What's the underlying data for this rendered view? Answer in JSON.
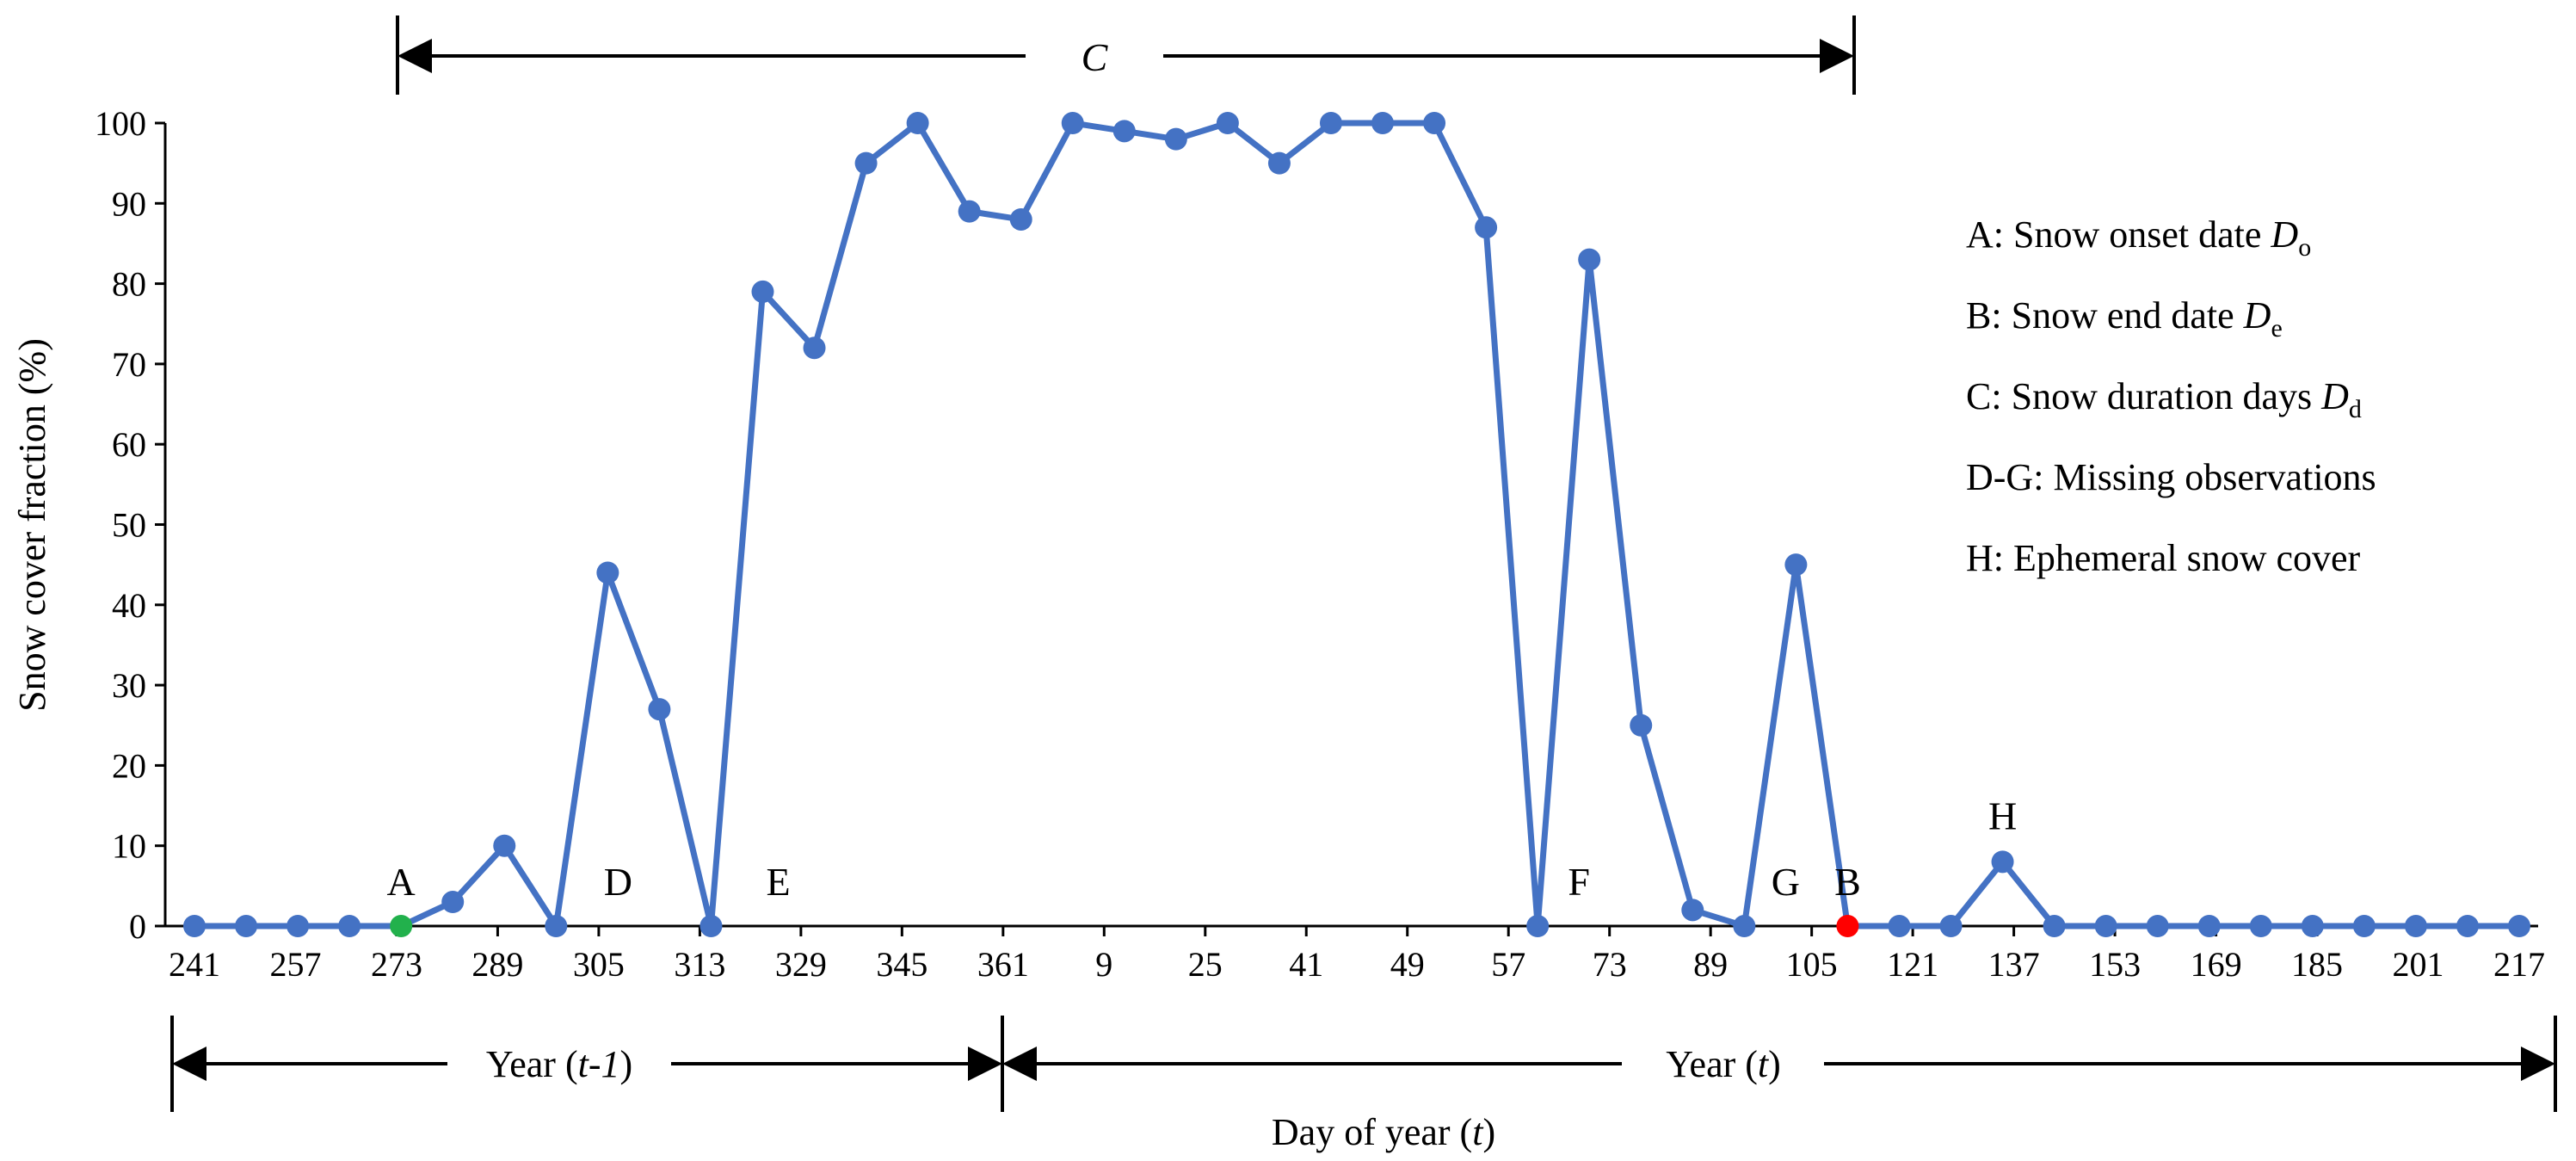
{
  "chart_data": {
    "type": "line",
    "ylabel": "Snow cover fraction (%)",
    "xlabel": {
      "text": "Day of year (",
      "var": "t",
      "close": ")"
    },
    "ylim": [
      0,
      100
    ],
    "yticks": [
      0,
      10,
      20,
      30,
      40,
      50,
      60,
      70,
      80,
      90,
      100
    ],
    "xtick_labels": [
      "241",
      "257",
      "273",
      "289",
      "305",
      "313",
      "329",
      "345",
      "361",
      "9",
      "25",
      "41",
      "49",
      "57",
      "73",
      "89",
      "105",
      "121",
      "137",
      "153",
      "169",
      "185",
      "201",
      "217"
    ],
    "series": [
      {
        "name": "Snow cover fraction",
        "color": "#4472C4",
        "values": [
          0,
          0,
          0,
          0,
          0,
          3,
          10,
          0,
          44,
          27,
          0,
          79,
          72,
          95,
          100,
          89,
          88,
          100,
          99,
          98,
          100,
          95,
          100,
          100,
          100,
          87,
          0,
          83,
          25,
          2,
          0,
          45,
          0,
          0,
          0,
          8,
          0,
          0,
          0,
          0,
          0,
          0,
          0,
          0,
          0,
          0
        ]
      }
    ],
    "highlight_points": [
      {
        "index": 4,
        "color": "#22B14C",
        "label": "A"
      },
      {
        "index": 32,
        "color": "#FF0000",
        "label": "B"
      }
    ],
    "point_labels": [
      {
        "label": "D",
        "index": 8.2
      },
      {
        "label": "E",
        "index": 11.3
      },
      {
        "label": "F",
        "index": 26.8
      },
      {
        "label": "G",
        "index": 30.8
      },
      {
        "label": "H",
        "index": 35
      }
    ],
    "duration_label": "C",
    "year_labels": [
      {
        "text": "Year (",
        "var": "t-1",
        "close": ")"
      },
      {
        "text": "Year (",
        "var": "t",
        "close": ")"
      }
    ],
    "legend": [
      {
        "key": "A",
        "text": "Snow onset date ",
        "sym": "D",
        "sub": "o"
      },
      {
        "key": "B",
        "text": "Snow end date ",
        "sym": "D",
        "sub": "e"
      },
      {
        "key": "C",
        "text": "Snow duration days ",
        "sym": "D",
        "sub": "d"
      },
      {
        "key": "D-G",
        "text": "Missing observations",
        "sym": "",
        "sub": ""
      },
      {
        "key": "H",
        "text": "Ephemeral snow cover",
        "sym": "",
        "sub": ""
      }
    ]
  }
}
